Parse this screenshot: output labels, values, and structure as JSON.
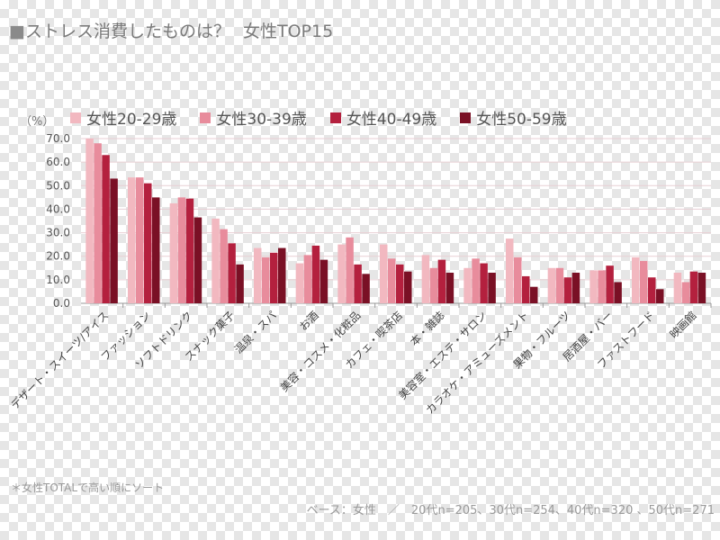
{
  "header": {
    "square": "■",
    "title": "ストレス消費したものは？",
    "subtitle": "女性TOP15"
  },
  "unit_label": "（%）",
  "footnote": "＊女性TOTALで高い順にソート",
  "base_note": "ベース：女性　／　20代n=205、30代n=254、40代n=320 、50代n=271",
  "chart_data": {
    "type": "bar",
    "title": "ストレス消費したものは？ 女性TOP15",
    "ylabel": "（%）",
    "xlabel": "",
    "ylim": [
      0,
      70
    ],
    "yticks": [
      "0.0",
      "10.0",
      "20.0",
      "30.0",
      "40.0",
      "50.0",
      "60.0",
      "70.0"
    ],
    "grid": true,
    "legend_position": "top",
    "categories": [
      "デザート・スイーツ/アイス",
      "ファッション",
      "ソフトドリンク",
      "スナック菓子",
      "温泉・スパ",
      "お酒",
      "美容・コスメ・化粧品",
      "カフェ・喫茶店",
      "本・雑誌",
      "美容室・エステ・サロン",
      "カラオケ・アミューズメント",
      "果物・フルーツ",
      "居酒屋・バー",
      "ファストフード",
      "映画館"
    ],
    "series": [
      {
        "name": "女性20-29歳",
        "color": "#f2b8c0",
        "values": [
          70.0,
          53.5,
          42.5,
          36.0,
          23.5,
          17.0,
          25.0,
          25.0,
          20.5,
          15.0,
          27.5,
          15.0,
          14.0,
          19.5,
          13.0
        ]
      },
      {
        "name": "女性30-39歳",
        "color": "#e88c9c",
        "values": [
          68.0,
          53.5,
          45.0,
          31.5,
          19.5,
          20.5,
          28.0,
          19.0,
          15.0,
          19.0,
          19.5,
          15.0,
          14.0,
          18.0,
          9.0
        ]
      },
      {
        "name": "女性40-49歳",
        "color": "#b4203e",
        "values": [
          63.0,
          51.0,
          44.5,
          25.5,
          21.5,
          24.5,
          16.5,
          16.5,
          18.5,
          17.0,
          11.5,
          11.0,
          16.0,
          11.0,
          13.5
        ]
      },
      {
        "name": "女性50-59歳",
        "color": "#7a1025",
        "values": [
          53.0,
          45.0,
          36.5,
          16.5,
          23.5,
          18.5,
          12.5,
          13.5,
          13.0,
          13.0,
          7.0,
          13.0,
          9.0,
          6.0,
          13.0
        ]
      }
    ]
  }
}
